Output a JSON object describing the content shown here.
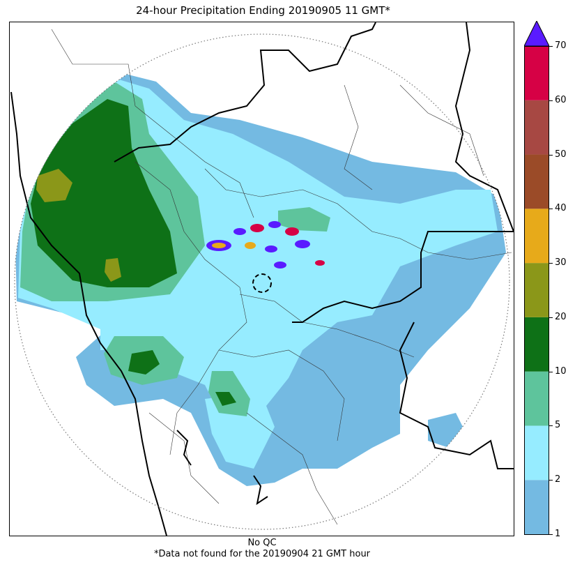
{
  "title": "24-hour Precipitation Ending 20190905 11 GMT*",
  "footer": {
    "line1": "No QC",
    "line2": "*Data not found for the 20190904 21 GMT hour"
  },
  "colorbar": {
    "levels": [
      {
        "label": "1",
        "color": "#74bae2"
      },
      {
        "label": "2",
        "color": "#96ecff"
      },
      {
        "label": "5",
        "color": "#5ec49c"
      },
      {
        "label": "10",
        "color": "#0e7117"
      },
      {
        "label": "20",
        "color": "#8b9719"
      },
      {
        "label": "30",
        "color": "#e7aa1a"
      },
      {
        "label": "40",
        "color": "#9b4b28"
      },
      {
        "label": "50",
        "color": "#a74843"
      },
      {
        "label": "60",
        "color": "#d60145"
      },
      {
        "label": "70",
        "color": null
      }
    ],
    "overflow_color": "#5a1bff"
  },
  "map": {
    "range_ring": "dotted",
    "radar_site_marker": "dashed-circle"
  }
}
